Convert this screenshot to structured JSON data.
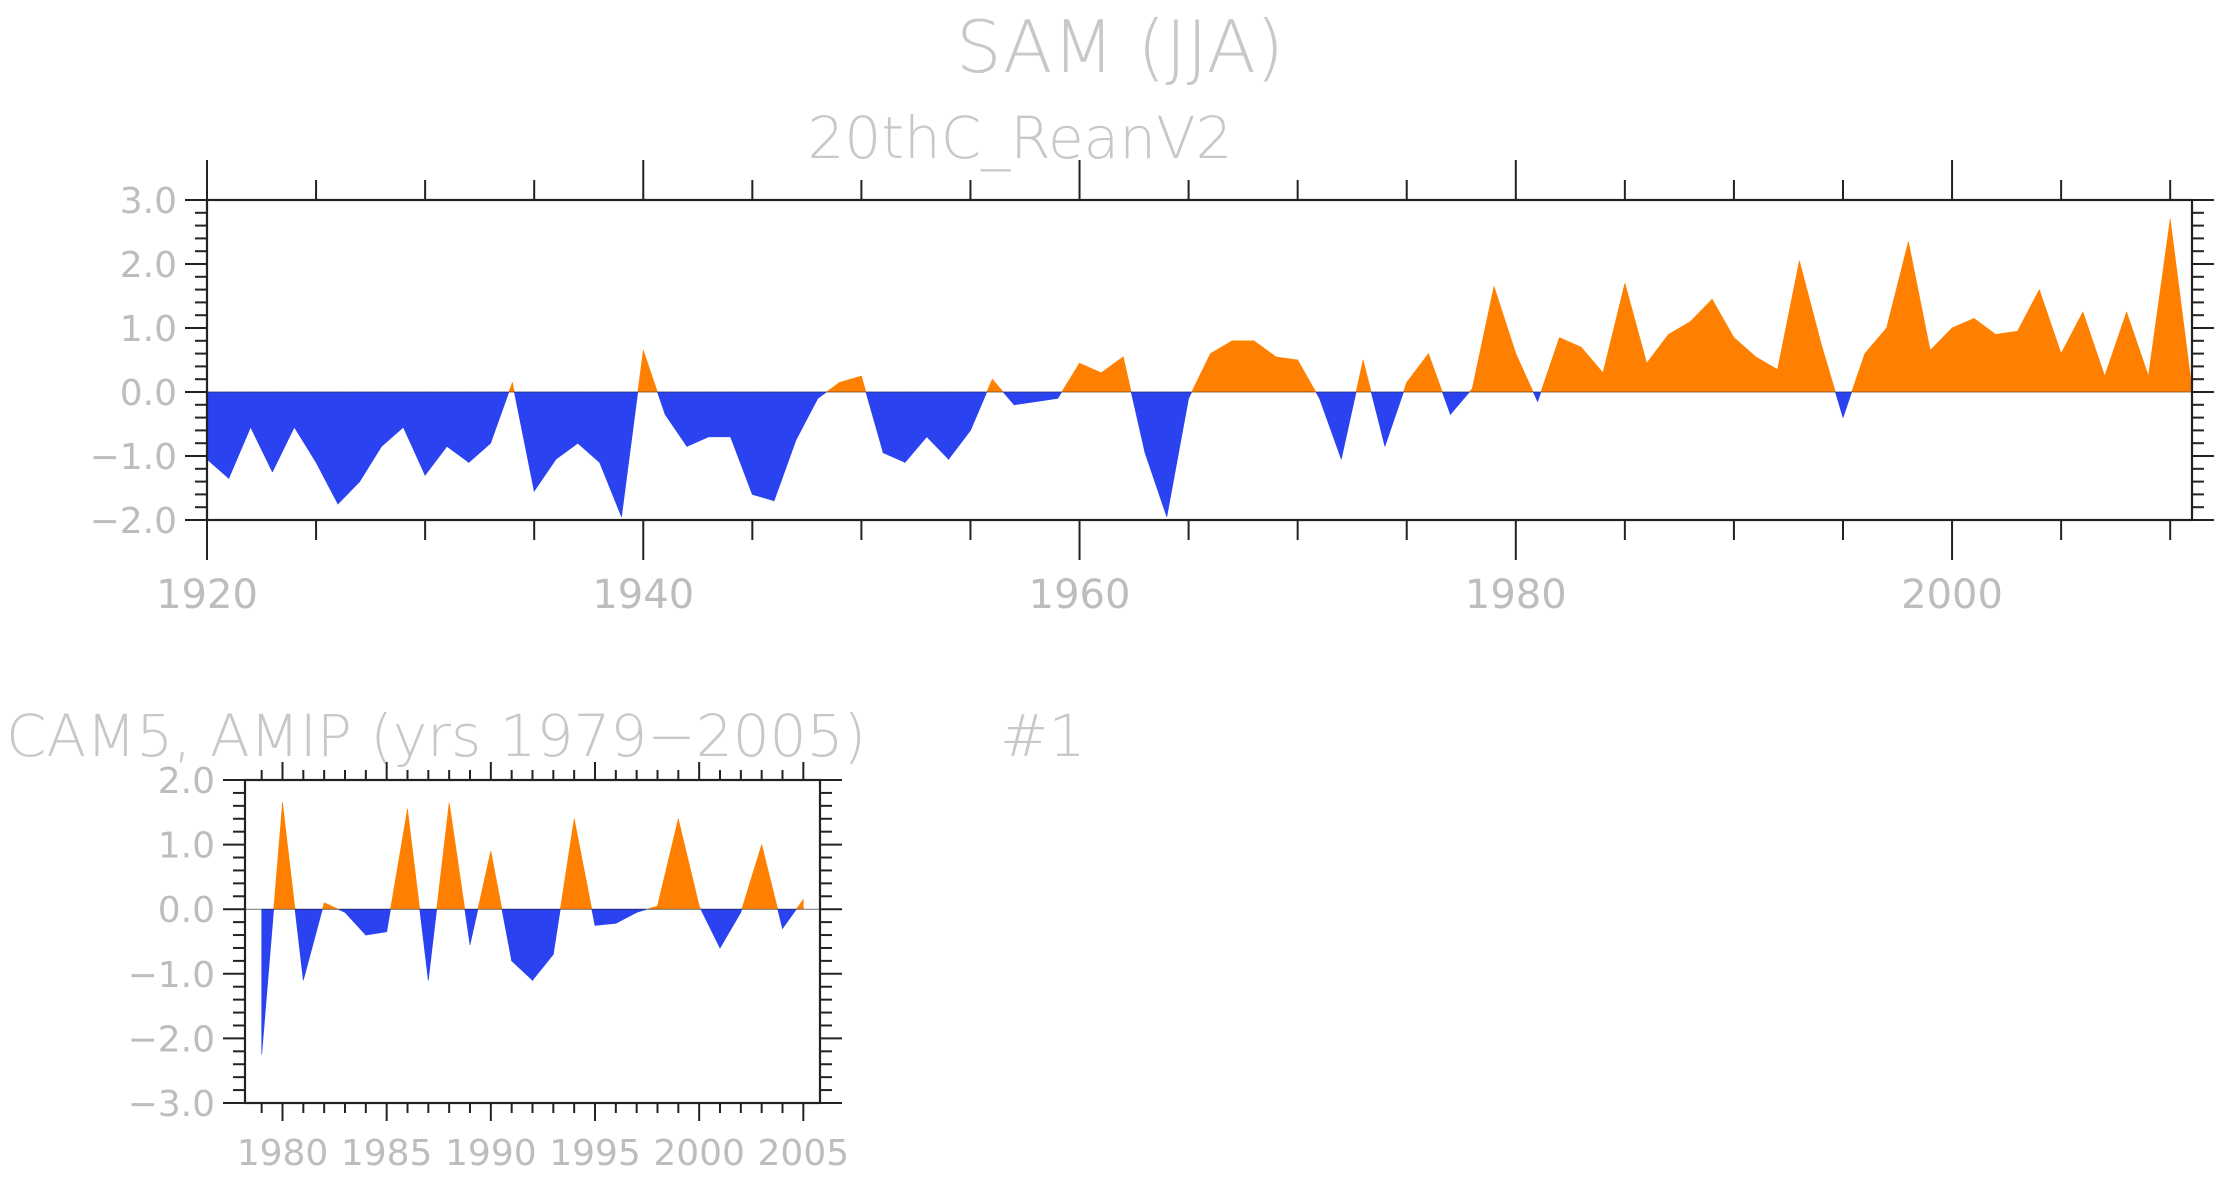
{
  "title": "SAM (JJA)",
  "colors": {
    "positive": "#ff8000",
    "negative": "#2a42f0",
    "axis": "#222222",
    "text": "#bdbdbd"
  },
  "chart_data": [
    {
      "type": "area",
      "subtitle": "20thC_ReanV2",
      "xlabel": "",
      "ylabel": "",
      "xlim": [
        1920,
        2011
      ],
      "ylim": [
        -2.0,
        3.0
      ],
      "xticks": [
        "1920",
        "1940",
        "1960",
        "1980",
        "2000"
      ],
      "yticks": [
        "3.0",
        "2.0",
        "1.0",
        "0.0",
        "−1.0",
        "−2.0"
      ],
      "ytick_values": [
        3.0,
        2.0,
        1.0,
        0.0,
        -1.0,
        -2.0
      ],
      "grid": false,
      "x": [
        1920,
        1921,
        1922,
        1923,
        1924,
        1925,
        1926,
        1927,
        1928,
        1929,
        1930,
        1931,
        1932,
        1933,
        1934,
        1935,
        1936,
        1937,
        1938,
        1939,
        1940,
        1941,
        1942,
        1943,
        1944,
        1945,
        1946,
        1947,
        1948,
        1949,
        1950,
        1951,
        1952,
        1953,
        1954,
        1955,
        1956,
        1957,
        1958,
        1959,
        1960,
        1961,
        1962,
        1963,
        1964,
        1965,
        1966,
        1967,
        1968,
        1969,
        1970,
        1971,
        1972,
        1973,
        1974,
        1975,
        1976,
        1977,
        1978,
        1979,
        1980,
        1981,
        1982,
        1983,
        1984,
        1985,
        1986,
        1987,
        1988,
        1989,
        1990,
        1991,
        1992,
        1993,
        1994,
        1995,
        1996,
        1997,
        1998,
        1999,
        2000,
        2001,
        2002,
        2003,
        2004,
        2005,
        2006,
        2007,
        2008,
        2009,
        2010,
        2011
      ],
      "values": [
        -1.05,
        -1.35,
        -0.55,
        -1.25,
        -0.55,
        -1.1,
        -1.75,
        -1.4,
        -0.85,
        -0.55,
        -1.3,
        -0.85,
        -1.1,
        -0.8,
        0.15,
        -1.55,
        -1.05,
        -0.8,
        -1.1,
        -1.95,
        0.65,
        -0.35,
        -0.85,
        -0.7,
        -0.7,
        -1.6,
        -1.7,
        -0.75,
        -0.1,
        0.15,
        0.25,
        -0.95,
        -1.1,
        -0.7,
        -1.05,
        -0.6,
        0.2,
        -0.2,
        -0.15,
        -0.1,
        0.45,
        0.3,
        0.55,
        -0.95,
        -1.95,
        -0.1,
        0.6,
        0.8,
        0.8,
        0.55,
        0.5,
        -0.1,
        -1.05,
        0.5,
        -0.85,
        0.15,
        0.6,
        -0.35,
        0.05,
        1.65,
        0.6,
        -0.15,
        0.85,
        0.7,
        0.3,
        1.7,
        0.45,
        0.9,
        1.1,
        1.45,
        0.85,
        0.55,
        0.35,
        2.05,
        0.75,
        -0.4,
        0.6,
        1.0,
        2.35,
        0.65,
        1.0,
        1.15,
        0.9,
        0.95,
        1.6,
        0.6,
        1.25,
        0.25,
        1.25,
        0.25,
        2.7,
        0.05
      ]
    },
    {
      "type": "area",
      "subtitle": "CAM5, AMIP (yrs 1979−2005)",
      "label": "#1",
      "xlabel": "",
      "ylabel": "",
      "xlim": [
        1978.2,
        2005.8
      ],
      "ylim": [
        -3.0,
        2.0
      ],
      "xticks": [
        "1980",
        "1985",
        "1990",
        "1995",
        "2000",
        "2005"
      ],
      "xtick_values": [
        1980,
        1985,
        1990,
        1995,
        2000,
        2005
      ],
      "yticks": [
        "2.0",
        "1.0",
        "0.0",
        "−1.0",
        "−2.0",
        "−3.0"
      ],
      "ytick_values": [
        2.0,
        1.0,
        0.0,
        -1.0,
        -2.0,
        -3.0
      ],
      "grid": false,
      "x": [
        1979,
        1980,
        1981,
        1982,
        1983,
        1984,
        1985,
        1986,
        1987,
        1988,
        1989,
        1990,
        1991,
        1992,
        1993,
        1994,
        1995,
        1996,
        1997,
        1998,
        1999,
        2000,
        2001,
        2002,
        2003,
        2004,
        2005
      ],
      "values": [
        -2.25,
        1.65,
        -1.1,
        0.1,
        -0.05,
        -0.4,
        -0.35,
        1.55,
        -1.1,
        1.65,
        -0.55,
        0.9,
        -0.8,
        -1.1,
        -0.7,
        1.4,
        -0.25,
        -0.22,
        -0.05,
        0.05,
        1.4,
        0.05,
        -0.6,
        -0.05,
        1.0,
        -0.3,
        0.15
      ]
    }
  ]
}
